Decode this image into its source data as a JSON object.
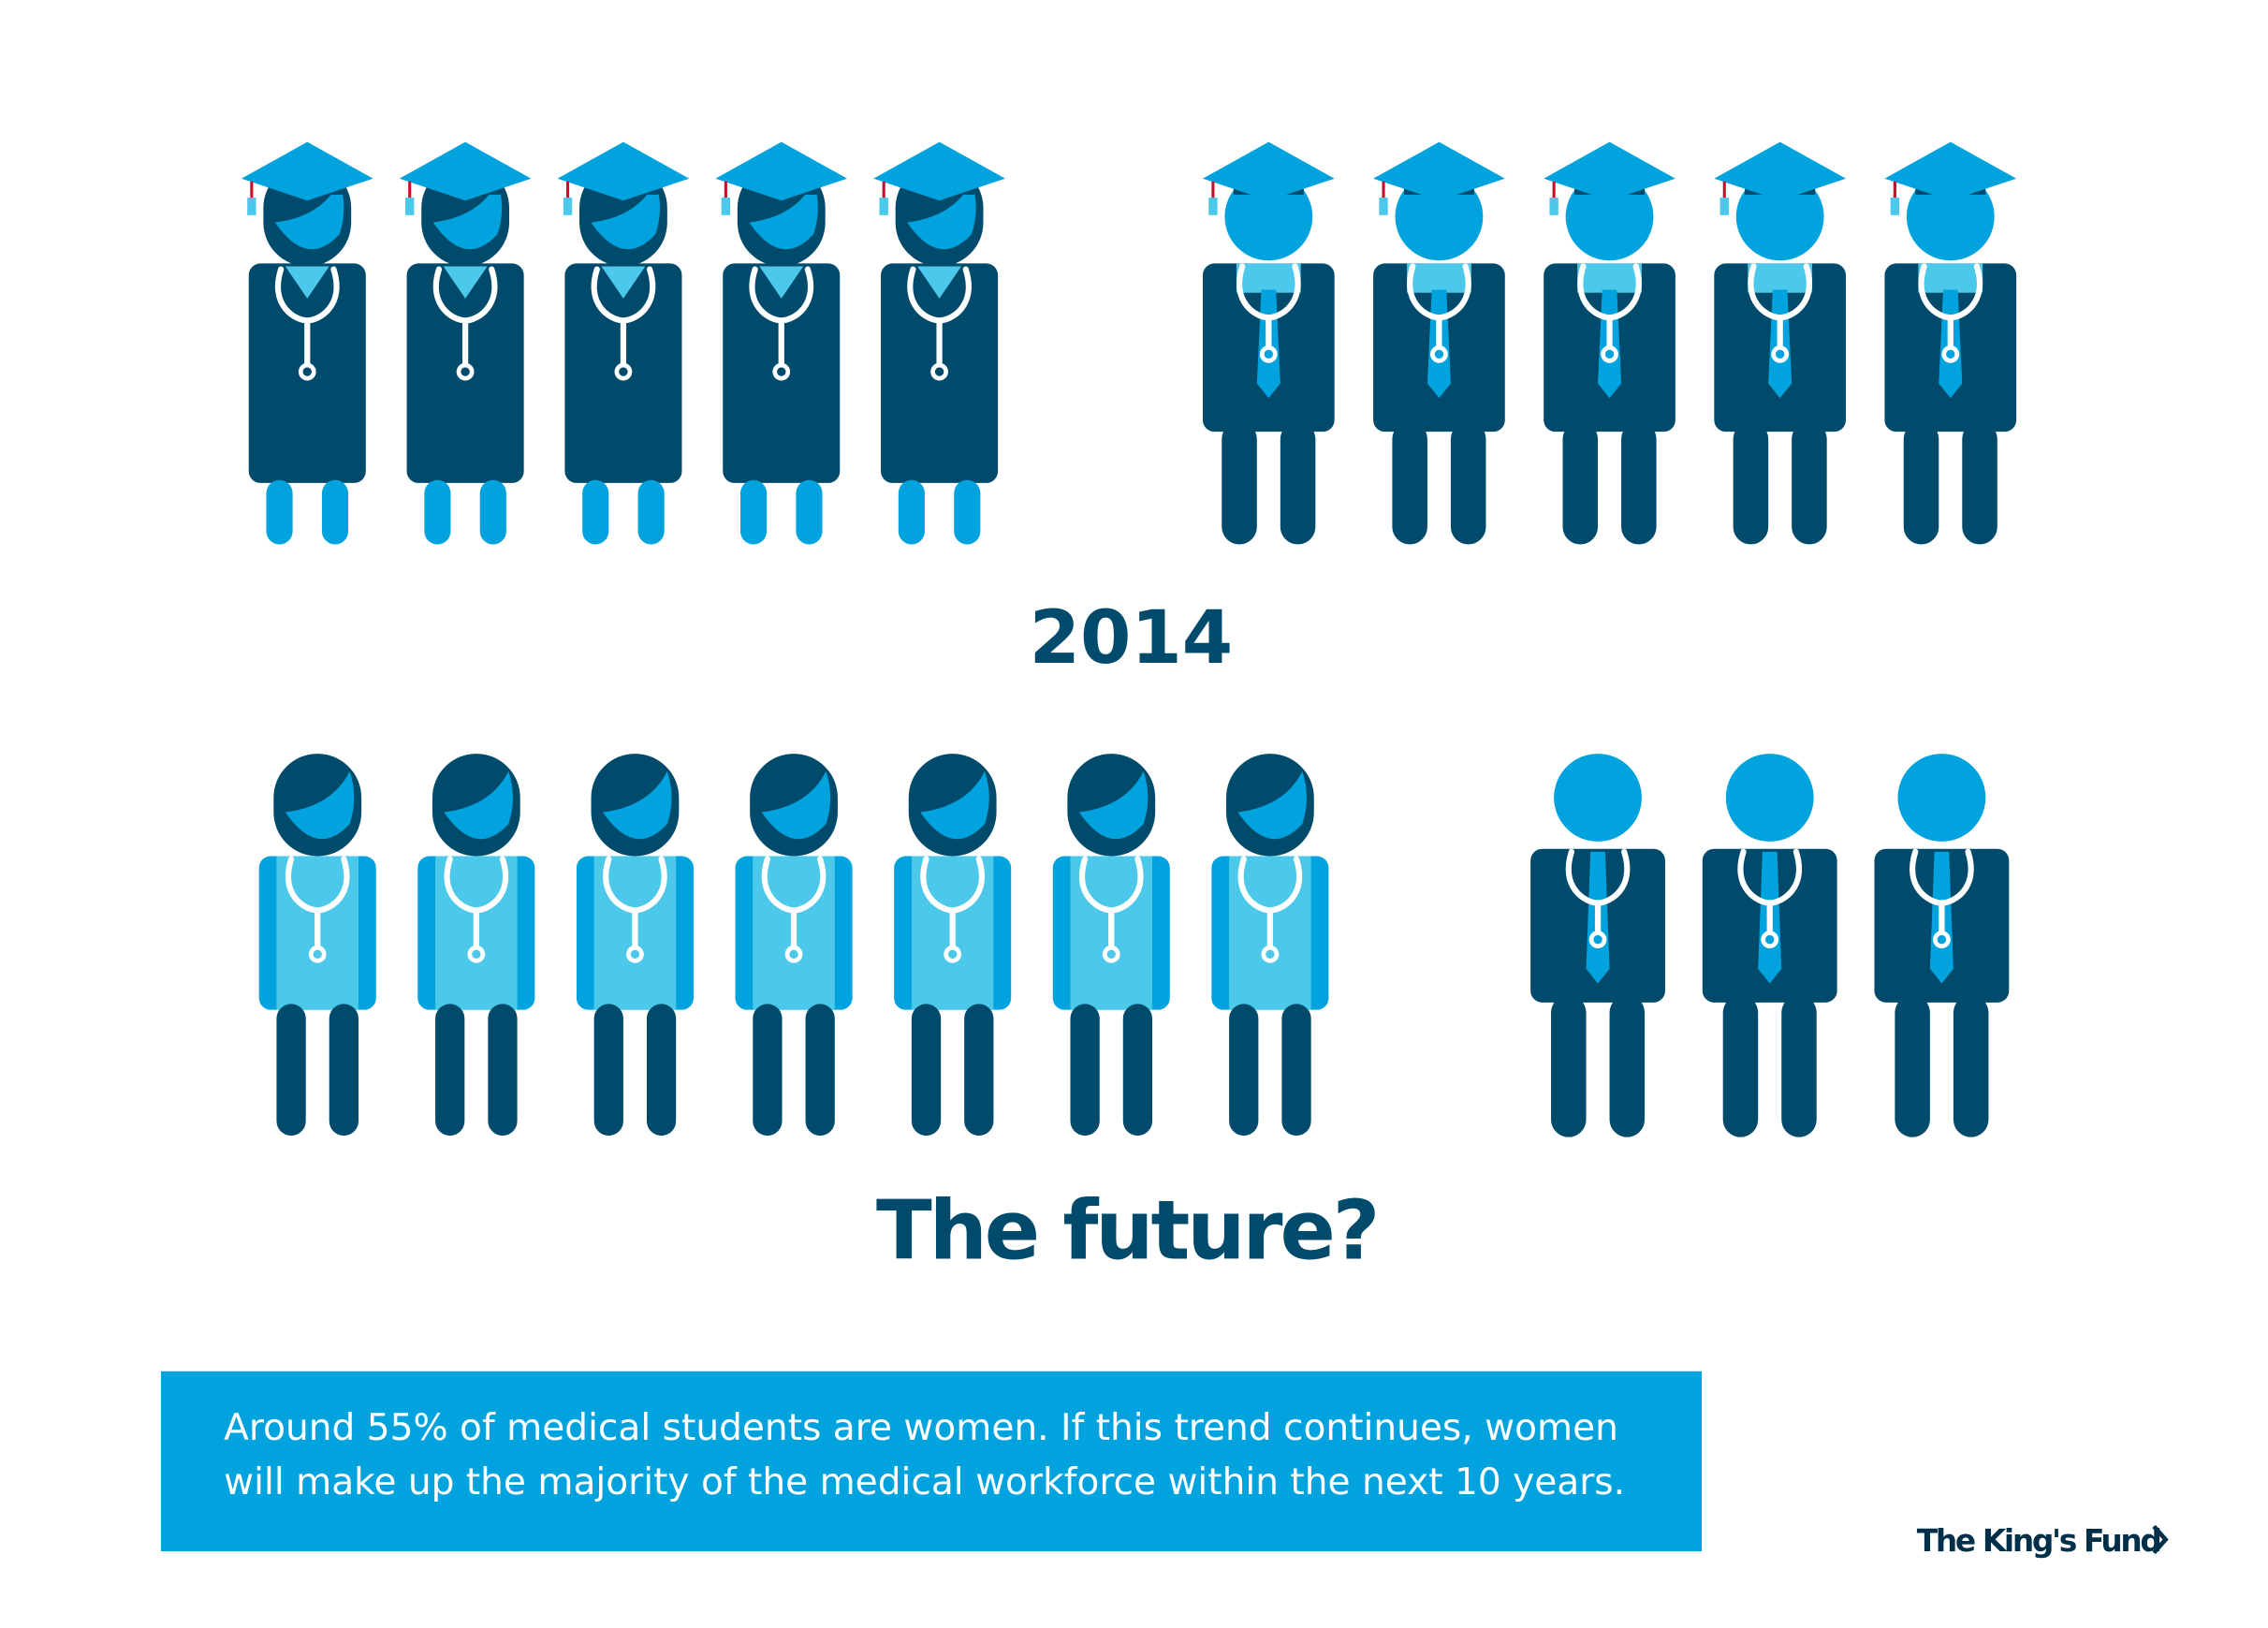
{
  "rows": [
    {
      "label": "2014",
      "women": 5,
      "men": 5
    },
    {
      "label": "The future?",
      "women": 7,
      "men": 3
    }
  ],
  "caption": [
    "Around 55% of medical students are women. If this trend continues, women",
    "will make up the majority of the medical workforce within the next 10 years."
  ],
  "logo": "The King's Fund"
}
